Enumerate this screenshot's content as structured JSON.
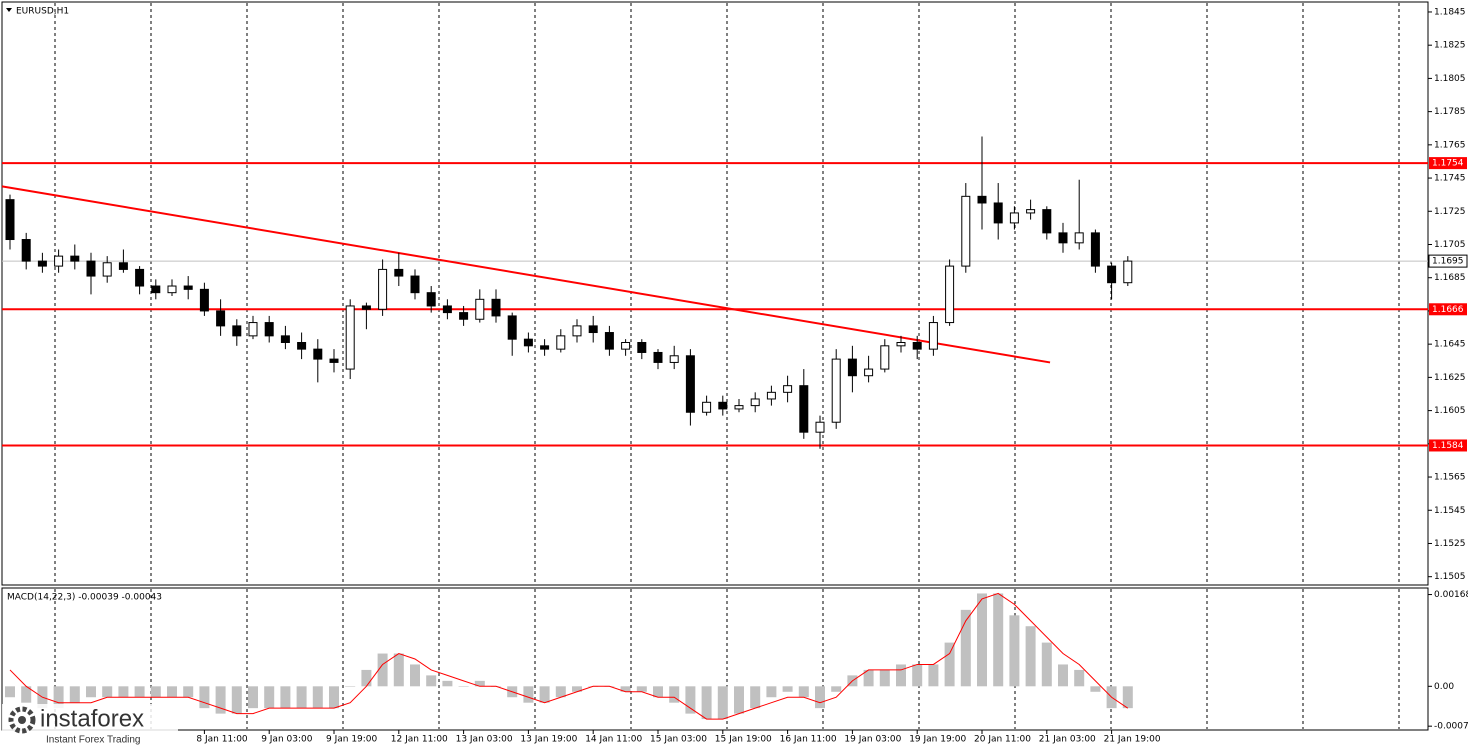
{
  "chart_data": [
    {
      "type": "candlestick",
      "title": "EURUSD,H1",
      "categories": [
        null,
        null,
        null,
        null,
        null,
        null,
        null,
        null,
        null,
        null,
        null,
        null,
        "8 Jan 11:00",
        null,
        null,
        null,
        "9 Jan 03:00",
        null,
        null,
        null,
        "9 Jan 19:00",
        null,
        null,
        null,
        "12 Jan 11:00",
        null,
        null,
        null,
        "13 Jan 03:00",
        null,
        null,
        null,
        "13 Jan 19:00",
        null,
        null,
        null,
        "14 Jan 11:00",
        null,
        null,
        null,
        "15 Jan 03:00",
        null,
        null,
        null,
        "15 Jan 19:00",
        null,
        null,
        null,
        "16 Jan 11:00",
        null,
        null,
        null,
        "19 Jan 03:00",
        null,
        null,
        null,
        "19 Jan 19:00",
        null,
        null,
        null,
        "20 Jan 11:00",
        null,
        null,
        null,
        "21 Jan 03:00",
        null,
        null,
        null,
        "21 Jan 19:00",
        null
      ],
      "open": [
        1.1732,
        1.1708,
        1.1695,
        1.1692,
        1.1698,
        1.1695,
        1.1686,
        1.1694,
        1.169,
        1.168,
        1.1676,
        1.168,
        1.1678,
        1.1665,
        1.1656,
        1.165,
        1.1658,
        1.165,
        1.1646,
        1.1642,
        1.1636,
        1.163,
        1.1668,
        1.1666,
        1.169,
        1.1686,
        1.1676,
        1.1668,
        1.1664,
        1.166,
        1.1672,
        1.1662,
        1.1648,
        1.1644,
        1.1642,
        1.165,
        1.1656,
        1.1652,
        1.1642,
        1.1646,
        1.164,
        1.1634,
        1.1638,
        1.1604,
        1.161,
        1.1606,
        1.1608,
        1.1612,
        1.1616,
        1.162,
        1.1592,
        1.1598,
        1.1636,
        1.1626,
        1.163,
        1.1644,
        1.1646,
        1.1642,
        1.1658,
        1.1692,
        1.1734,
        1.173,
        1.1718,
        1.1724,
        1.1726,
        1.1712,
        1.1706,
        1.1712,
        1.1692,
        1.1682
      ],
      "high": [
        1.1735,
        1.1712,
        1.17,
        1.1702,
        1.1705,
        1.17,
        1.1698,
        1.1702,
        1.1692,
        1.1684,
        1.1684,
        1.1686,
        1.1682,
        1.1672,
        1.166,
        1.1662,
        1.1662,
        1.1656,
        1.1652,
        1.1648,
        1.1642,
        1.1672,
        1.167,
        1.1696,
        1.17,
        1.169,
        1.168,
        1.1672,
        1.1668,
        1.1678,
        1.1678,
        1.1664,
        1.1652,
        1.1648,
        1.1654,
        1.166,
        1.1662,
        1.1656,
        1.1648,
        1.1648,
        1.1642,
        1.1644,
        1.1642,
        1.1614,
        1.1614,
        1.1612,
        1.1616,
        1.162,
        1.1626,
        1.163,
        1.1602,
        1.1642,
        1.1644,
        1.1638,
        1.1648,
        1.165,
        1.165,
        1.1662,
        1.1696,
        1.1742,
        1.177,
        1.1742,
        1.1728,
        1.1732,
        1.1728,
        1.1718,
        1.1744,
        1.1714,
        1.1694,
        1.1698
      ],
      "low": [
        1.1702,
        1.169,
        1.1688,
        1.1688,
        1.169,
        1.1675,
        1.1682,
        1.1688,
        1.1675,
        1.1672,
        1.1674,
        1.1672,
        1.1662,
        1.165,
        1.1644,
        1.1648,
        1.1646,
        1.1642,
        1.1636,
        1.1622,
        1.1628,
        1.1624,
        1.1654,
        1.1662,
        1.168,
        1.1672,
        1.1664,
        1.166,
        1.1656,
        1.1658,
        1.1658,
        1.1638,
        1.164,
        1.1638,
        1.164,
        1.1646,
        1.1646,
        1.1638,
        1.1638,
        1.1636,
        1.163,
        1.163,
        1.1596,
        1.1602,
        1.1602,
        1.1604,
        1.1604,
        1.1608,
        1.161,
        1.1588,
        1.1582,
        1.1594,
        1.1616,
        1.1622,
        1.1628,
        1.164,
        1.1636,
        1.1638,
        1.1656,
        1.1688,
        1.1714,
        1.1708,
        1.1714,
        1.172,
        1.1708,
        1.17,
        1.1702,
        1.1688,
        1.1672,
        1.168
      ],
      "close": [
        1.1708,
        1.1695,
        1.1692,
        1.1698,
        1.1695,
        1.1686,
        1.1694,
        1.169,
        1.168,
        1.1676,
        1.168,
        1.1678,
        1.1665,
        1.1656,
        1.165,
        1.1658,
        1.165,
        1.1646,
        1.1642,
        1.1636,
        1.1634,
        1.1668,
        1.1666,
        1.169,
        1.1686,
        1.1676,
        1.1668,
        1.1664,
        1.166,
        1.1672,
        1.1662,
        1.1648,
        1.1644,
        1.1642,
        1.165,
        1.1656,
        1.1652,
        1.1642,
        1.1646,
        1.164,
        1.1634,
        1.1638,
        1.1604,
        1.161,
        1.1606,
        1.1608,
        1.1612,
        1.1616,
        1.162,
        1.1592,
        1.1598,
        1.1636,
        1.1626,
        1.163,
        1.1644,
        1.1646,
        1.1642,
        1.1658,
        1.1692,
        1.1734,
        1.173,
        1.1718,
        1.1724,
        1.1726,
        1.1712,
        1.1706,
        1.1712,
        1.1692,
        1.1682,
        1.1695
      ],
      "up_color": "#ffffff",
      "down_color": "#000000",
      "outline_color": "#000000",
      "ylim": [
        1.15,
        1.1851
      ],
      "yticks": [
        1.1845,
        1.1825,
        1.1805,
        1.1785,
        1.1765,
        1.1745,
        1.1725,
        1.1705,
        1.1685,
        1.1665,
        1.1645,
        1.1625,
        1.1605,
        1.1585,
        1.1565,
        1.1545,
        1.1525,
        1.1505
      ],
      "levels": [
        1.1754,
        1.1666,
        1.1584
      ],
      "level_color": "#ff0000",
      "current_price": 1.1695,
      "current_color": "#c0c0c0",
      "trendline": {
        "x": [
          -0.5,
          64.2
        ],
        "y": [
          1.174,
          1.1634
        ],
        "color": "#ff0000"
      },
      "grid": true
    },
    {
      "type": "bar",
      "title": "MACD(14,22,3) -0.00039 -0.00043",
      "values": [
        -0.0002,
        -0.0003,
        -0.0004,
        -0.0004,
        -0.0003,
        -0.0002,
        -0.0002,
        -0.0002,
        -0.0002,
        -0.0002,
        -0.0002,
        -0.0002,
        -0.0004,
        -0.0005,
        -0.0005,
        -0.0004,
        -0.0004,
        -0.0004,
        -0.0004,
        -0.0004,
        -0.0004,
        0,
        0.0003,
        0.0006,
        0.0006,
        0.0004,
        0.0002,
        0.0001,
        0,
        0.0001,
        0,
        -0.0002,
        -0.0003,
        -0.0003,
        -0.0002,
        -0.0001,
        0,
        0,
        -0.0001,
        -0.0001,
        -0.0002,
        -0.0003,
        -0.0005,
        -0.0006,
        -0.0006,
        -0.0005,
        -0.0004,
        -0.0002,
        -0.0001,
        -0.0002,
        -0.0004,
        -0.0001,
        0.0002,
        0.0003,
        0.0003,
        0.0004,
        0.0004,
        0.0004,
        0.0008,
        0.0014,
        0.0017,
        0.0017,
        0.0013,
        0.0011,
        0.0008,
        0.0004,
        0.0003,
        -0.0001,
        -0.0004,
        -0.0004
      ],
      "color": "#c0c0c0",
      "signal": {
        "values": [
          0.0003,
          0,
          -0.0002,
          -0.0003,
          -0.0003,
          -0.0003,
          -0.0002,
          -0.0002,
          -0.0002,
          -0.0002,
          -0.0002,
          -0.0002,
          -0.0003,
          -0.0004,
          -0.0005,
          -0.0005,
          -0.0004,
          -0.0004,
          -0.0004,
          -0.0004,
          -0.0004,
          -0.0003,
          0,
          0.0004,
          0.0006,
          0.0005,
          0.0003,
          0.0002,
          0.0001,
          0,
          0,
          -0.0001,
          -0.0002,
          -0.0003,
          -0.0002,
          -0.0001,
          0,
          0,
          -0.0001,
          -0.0001,
          -0.0002,
          -0.0002,
          -0.0004,
          -0.0006,
          -0.0006,
          -0.0005,
          -0.0004,
          -0.0003,
          -0.0002,
          -0.0002,
          -0.0003,
          -0.0002,
          0.0001,
          0.0003,
          0.0003,
          0.0003,
          0.0004,
          0.0004,
          0.0006,
          0.0012,
          0.0016,
          0.0017,
          0.0015,
          0.0012,
          0.0009,
          0.0006,
          0.0004,
          0.0001,
          -0.0002,
          -0.0004
        ],
        "color": "#ff0000"
      },
      "ylim": [
        -0.0008,
        0.0018
      ],
      "yticks": [
        0.00168,
        {
          "value": 0,
          "label": "0.00"
        },
        -0.00073
      ]
    }
  ],
  "watermark": {
    "brand": "instaforex",
    "tagline": "Instant Forex Trading"
  }
}
